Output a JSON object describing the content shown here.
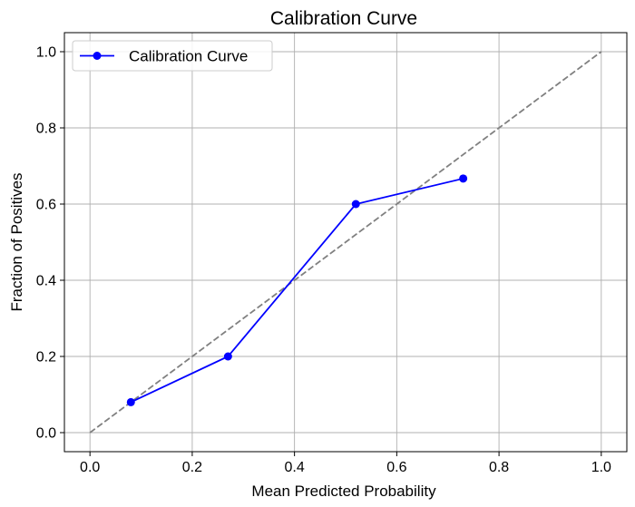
{
  "chart_data": {
    "type": "line",
    "title": "Calibration Curve",
    "xlabel": "Mean Predicted Probability",
    "ylabel": "Fraction of Positives",
    "xlim": [
      -0.05,
      1.05
    ],
    "ylim": [
      -0.05,
      1.05
    ],
    "x_ticks": [
      "0.0",
      "0.2",
      "0.4",
      "0.6",
      "0.8",
      "1.0"
    ],
    "y_ticks": [
      "0.0",
      "0.2",
      "0.4",
      "0.6",
      "0.8",
      "1.0"
    ],
    "grid": true,
    "legend_position": "top-left",
    "series": [
      {
        "name": "Calibration Curve",
        "color": "#0000ff",
        "marker": "circle",
        "x": [
          0.08,
          0.27,
          0.52,
          0.73
        ],
        "y": [
          0.08,
          0.2,
          0.6,
          0.667
        ]
      }
    ],
    "reference_line": {
      "color": "#808080",
      "style": "dashed",
      "x": [
        0.0,
        1.0
      ],
      "y": [
        0.0,
        1.0
      ]
    }
  }
}
